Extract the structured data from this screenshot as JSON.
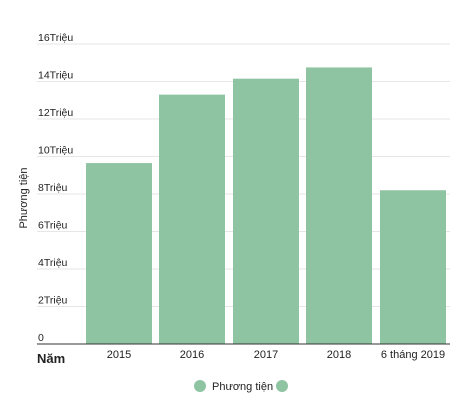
{
  "chart_data": {
    "type": "bar",
    "categories": [
      "2015",
      "2016",
      "2017",
      "2018",
      "6 tháng 2019"
    ],
    "series": [
      {
        "name": "Phương tiện",
        "values": [
          9650000,
          13300000,
          14150000,
          14750000,
          8200000
        ],
        "color": "#8fc4a2"
      }
    ],
    "title": "",
    "xlabel": "Năm",
    "ylabel": "Phương tiện",
    "ylim": [
      0,
      16000000
    ],
    "yticks": [
      {
        "value": 0,
        "label": "0"
      },
      {
        "value": 2000000,
        "label": "2Triệu"
      },
      {
        "value": 4000000,
        "label": "4Triệu"
      },
      {
        "value": 6000000,
        "label": "6Triệu"
      },
      {
        "value": 8000000,
        "label": "8Triệu"
      },
      {
        "value": 10000000,
        "label": "10Triệu"
      },
      {
        "value": 12000000,
        "label": "12Triệu"
      },
      {
        "value": 14000000,
        "label": "14Triệu"
      },
      {
        "value": 16000000,
        "label": "16Triệu"
      }
    ],
    "grid": true,
    "legend": {
      "position": "bottom",
      "label": "Phương tiện"
    },
    "colors": {
      "gridline": "#e6e6e6",
      "baseline": "#333333",
      "legend_extra_marker": "#8fc4a2"
    }
  }
}
